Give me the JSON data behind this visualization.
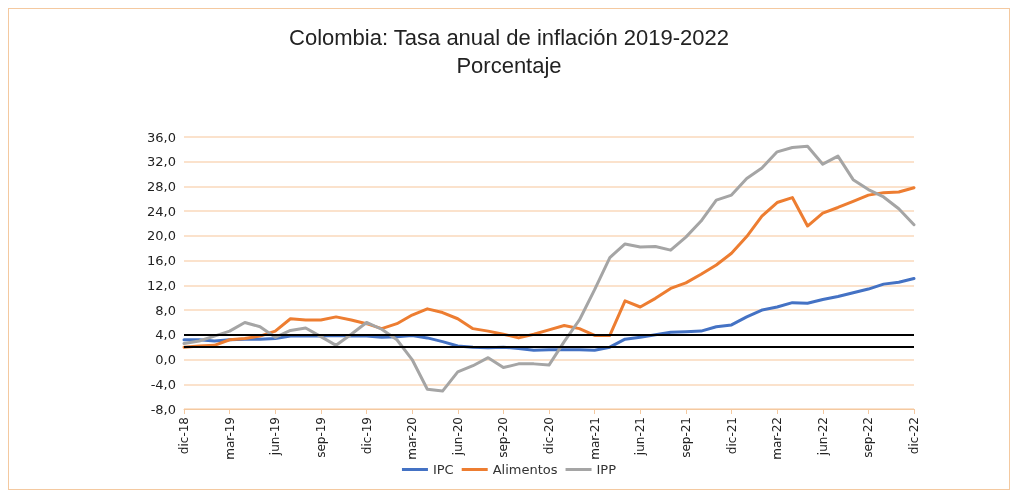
{
  "chart_data": {
    "type": "line",
    "title": "Colombia: Tasa anual de inflación 2019-2022",
    "subtitle": "Porcentaje",
    "categories": [
      "dic-18",
      null,
      null,
      "mar-19",
      null,
      null,
      "jun-19",
      null,
      null,
      "sep-19",
      null,
      null,
      "dic-19",
      null,
      null,
      "mar-20",
      null,
      null,
      "jun-20",
      null,
      null,
      "sep-20",
      null,
      null,
      "dic-20",
      null,
      null,
      "mar-21",
      null,
      null,
      "jun-21",
      null,
      null,
      "sep-21",
      null,
      null,
      "dic-21",
      null,
      null,
      "mar-22",
      null,
      null,
      "jun-22",
      null,
      null,
      "sep-22",
      null,
      null,
      "dic-22"
    ],
    "series": [
      {
        "name": "IPC",
        "color": "#4472c4",
        "values": [
          3.2,
          3.2,
          3.0,
          3.2,
          3.3,
          3.3,
          3.4,
          3.8,
          3.8,
          3.8,
          3.9,
          3.8,
          3.8,
          3.6,
          3.7,
          3.9,
          3.5,
          2.9,
          2.2,
          2.0,
          1.9,
          2.0,
          1.8,
          1.5,
          1.6,
          1.6,
          1.6,
          1.5,
          2.0,
          3.3,
          3.6,
          4.0,
          4.4,
          4.5,
          4.6,
          5.3,
          5.6,
          6.9,
          8.0,
          8.5,
          9.2,
          9.1,
          9.7,
          10.2,
          10.8,
          11.4,
          12.2,
          12.5,
          13.1
        ]
      },
      {
        "name": "Alimentos",
        "color": "#ed7d31",
        "values": [
          2.0,
          2.2,
          2.3,
          3.2,
          3.4,
          3.8,
          4.6,
          6.6,
          6.4,
          6.4,
          6.9,
          6.4,
          5.8,
          5.0,
          5.8,
          7.2,
          8.2,
          7.6,
          6.6,
          5.0,
          4.6,
          4.1,
          3.5,
          4.1,
          4.8,
          5.5,
          5.0,
          3.9,
          3.9,
          9.5,
          8.5,
          9.9,
          11.5,
          12.4,
          13.8,
          15.3,
          17.2,
          19.9,
          23.2,
          25.4,
          26.2,
          21.6,
          23.7,
          24.6,
          25.6,
          26.6,
          27.0,
          27.1,
          27.8
        ]
      },
      {
        "name": "IPP",
        "color": "#a5a5a5",
        "values": [
          2.6,
          3.0,
          3.8,
          4.6,
          6.0,
          5.3,
          3.6,
          4.7,
          5.1,
          3.7,
          2.3,
          4.1,
          6.0,
          4.9,
          3.2,
          0.0,
          -4.8,
          -5.1,
          -2.0,
          -1.0,
          0.3,
          -1.3,
          -0.7,
          -0.7,
          -0.9,
          2.9,
          6.4,
          11.3,
          16.5,
          18.7,
          18.2,
          18.3,
          17.7,
          19.8,
          22.4,
          25.8,
          26.6,
          29.3,
          31.0,
          33.6,
          34.3,
          34.5,
          31.6,
          32.9,
          29.1,
          27.5,
          26.3,
          24.4,
          21.8
        ]
      }
    ],
    "ylim": [
      -8,
      36
    ],
    "yticks": [
      {
        "value": -8,
        "label": "-8,0"
      },
      {
        "value": -4,
        "label": "-4,0"
      },
      {
        "value": 0,
        "label": "0,0"
      },
      {
        "value": 4,
        "label": "4,0"
      },
      {
        "value": 8,
        "label": "8,0"
      },
      {
        "value": 12,
        "label": "12,0"
      },
      {
        "value": 16,
        "label": "16,0"
      },
      {
        "value": 20,
        "label": "20,0"
      },
      {
        "value": 24,
        "label": "24,0"
      },
      {
        "value": 28,
        "label": "28,0"
      },
      {
        "value": 32,
        "label": "32,0"
      },
      {
        "value": 36,
        "label": "36,0"
      }
    ],
    "ref_lines": [
      {
        "axis": "y",
        "value": 4,
        "color": "#000000"
      },
      {
        "axis": "y",
        "value": 2,
        "color": "#000000"
      }
    ],
    "grid": "y",
    "legend": "bottom",
    "marker": "none",
    "line_style": "solid"
  }
}
